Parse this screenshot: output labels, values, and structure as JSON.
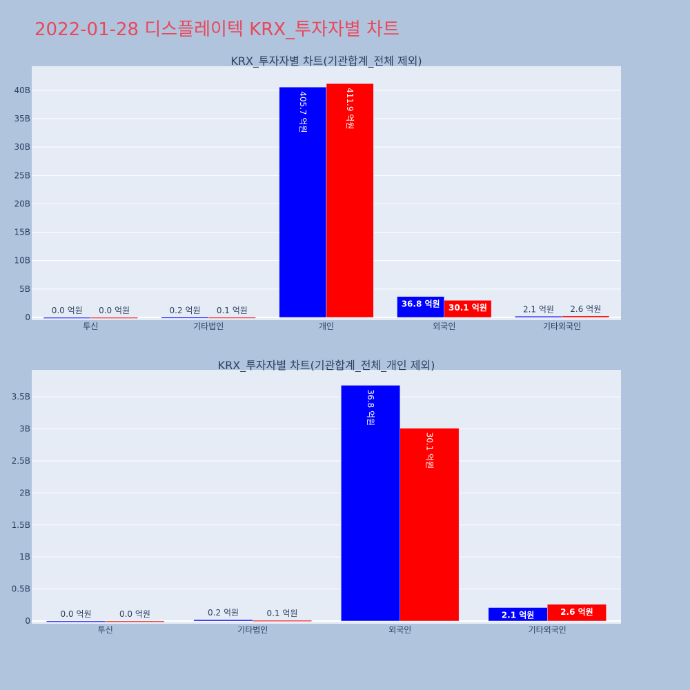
{
  "title": "2022-01-28 디스플레이텍 KRX_투자자별 차트",
  "colors": {
    "page_bg": "#b0c4de",
    "plot_bg": "#e5ecf6",
    "title": "#e8485a",
    "series_blue": "#0000ff",
    "series_red": "#ff0000"
  },
  "chart_data": [
    {
      "type": "bar",
      "title": "KRX_투자자별 차트(기관합계_전체 제외)",
      "categories": [
        "투신",
        "기타법인",
        "개인",
        "외국인",
        "기타외국인"
      ],
      "ylim": [
        0,
        44
      ],
      "yticks": [
        0,
        5,
        10,
        15,
        20,
        25,
        30,
        35,
        40
      ],
      "ytick_labels": [
        "0",
        "5B",
        "10B",
        "15B",
        "20B",
        "25B",
        "30B",
        "35B",
        "40B"
      ],
      "grid": true,
      "series": [
        {
          "color": "#0000ff",
          "values": [
            0.0,
            0.02,
            40.57,
            3.68,
            0.21
          ],
          "labels": [
            "0.0 억원",
            "0.2 억원",
            "405.7 억원",
            "36.8 억원",
            "2.1 억원"
          ]
        },
        {
          "color": "#ff0000",
          "values": [
            0.0,
            0.01,
            41.19,
            3.01,
            0.26
          ],
          "labels": [
            "0.0 억원",
            "0.1 억원",
            "411.9 억원",
            "30.1 억원",
            "2.6 억원"
          ]
        }
      ]
    },
    {
      "type": "bar",
      "title": "KRX_투자자별 차트(기관합계_전체_개인 제외)",
      "categories": [
        "투신",
        "기타법인",
        "외국인",
        "기타외국인"
      ],
      "ylim": [
        0,
        3.9
      ],
      "yticks": [
        0,
        0.5,
        1,
        1.5,
        2,
        2.5,
        3,
        3.5
      ],
      "ytick_labels": [
        "0",
        "0.5B",
        "1B",
        "1.5B",
        "2B",
        "2.5B",
        "3B",
        "3.5B"
      ],
      "grid": true,
      "series": [
        {
          "color": "#0000ff",
          "values": [
            0.0,
            0.02,
            3.68,
            0.21
          ],
          "labels": [
            "0.0 억원",
            "0.2 억원",
            "36.8 억원",
            "2.1 억원"
          ]
        },
        {
          "color": "#ff0000",
          "values": [
            0.0,
            0.01,
            3.01,
            0.26
          ],
          "labels": [
            "0.0 억원",
            "0.1 억원",
            "30.1 억원",
            "2.6 억원"
          ]
        }
      ]
    }
  ]
}
